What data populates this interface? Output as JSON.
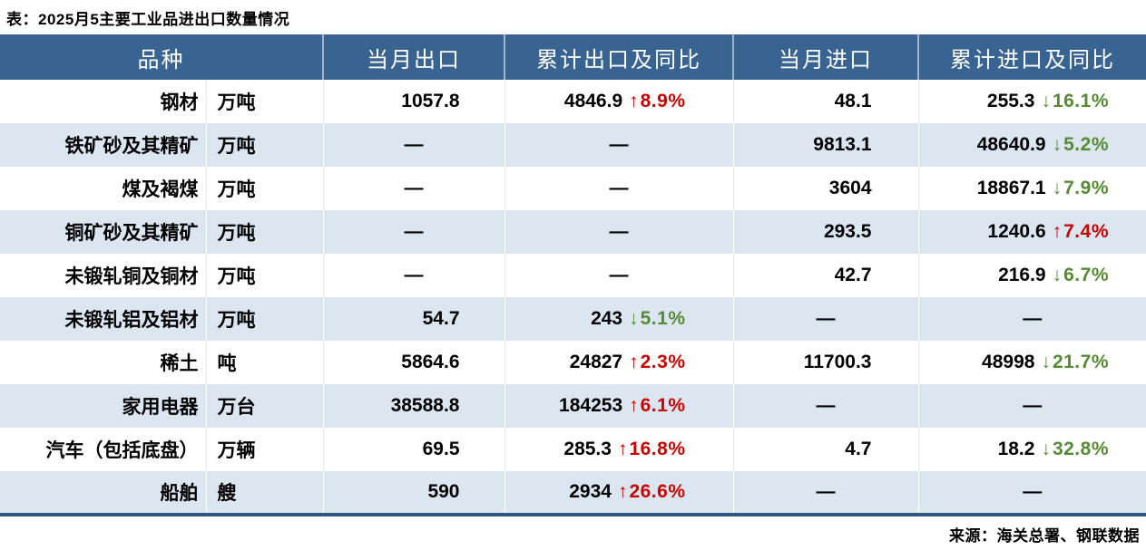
{
  "title": "表：2025月5主要工业品进出口数量情况",
  "source": "来源：海关总署、钢联数据",
  "colors": {
    "header_bg": "#396390",
    "stripe": "#DCE6F1",
    "up": "#CD0000",
    "down": "#578A35",
    "border_navy": "#2F5780"
  },
  "icons": {
    "up_arrow": "↑",
    "down_arrow": "↓"
  },
  "dash": "—",
  "table": {
    "headers": [
      "品种",
      "当月出口",
      "累计出口及同比",
      "当月进口",
      "累计进口及同比"
    ],
    "rows": [
      {
        "name": "钢材",
        "unit": "万吨",
        "export": "1057.8",
        "export_cum": {
          "value": "4846.9",
          "dir": "up",
          "pct": "8.9%"
        },
        "import": "48.1",
        "import_cum": {
          "value": "255.3",
          "dir": "down",
          "pct": "16.1%"
        }
      },
      {
        "name": "铁矿砂及其精矿",
        "unit": "万吨",
        "export": "—",
        "export_cum": "—",
        "import": "9813.1",
        "import_cum": {
          "value": "48640.9",
          "dir": "down",
          "pct": "5.2%"
        }
      },
      {
        "name": "煤及褐煤",
        "unit": "万吨",
        "export": "—",
        "export_cum": "—",
        "import": "3604",
        "import_cum": {
          "value": "18867.1",
          "dir": "down",
          "pct": "7.9%"
        }
      },
      {
        "name": "铜矿砂及其精矿",
        "unit": "万吨",
        "export": "—",
        "export_cum": "—",
        "import": "293.5",
        "import_cum": {
          "value": "1240.6",
          "dir": "up",
          "pct": "7.4%"
        }
      },
      {
        "name": "未锻轧铜及铜材",
        "unit": "万吨",
        "export": "—",
        "export_cum": "—",
        "import": "42.7",
        "import_cum": {
          "value": "216.9",
          "dir": "down",
          "pct": "6.7%"
        }
      },
      {
        "name": "未锻轧铝及铝材",
        "unit": "万吨",
        "export": "54.7",
        "export_cum": {
          "value": "243",
          "dir": "down",
          "pct": "5.1%"
        },
        "import": "—",
        "import_cum": "—"
      },
      {
        "name": "稀土",
        "unit": "吨",
        "export": "5864.6",
        "export_cum": {
          "value": "24827",
          "dir": "up",
          "pct": "2.3%"
        },
        "import": "11700.3",
        "import_cum": {
          "value": "48998",
          "dir": "down",
          "pct": "21.7%"
        }
      },
      {
        "name": "家用电器",
        "unit": "万台",
        "export": "38588.8",
        "export_cum": {
          "value": "184253",
          "dir": "up",
          "pct": "6.1%"
        },
        "import": "—",
        "import_cum": "—"
      },
      {
        "name": "汽车（包括底盘）",
        "unit": "万辆",
        "export": "69.5",
        "export_cum": {
          "value": "285.3",
          "dir": "up",
          "pct": "16.8%"
        },
        "import": "4.7",
        "import_cum": {
          "value": "18.2",
          "dir": "down",
          "pct": "32.8%"
        }
      },
      {
        "name": "船舶",
        "unit": "艘",
        "export": "590",
        "export_cum": {
          "value": "2934",
          "dir": "up",
          "pct": "26.6%"
        },
        "import": "—",
        "import_cum": "—"
      }
    ]
  }
}
